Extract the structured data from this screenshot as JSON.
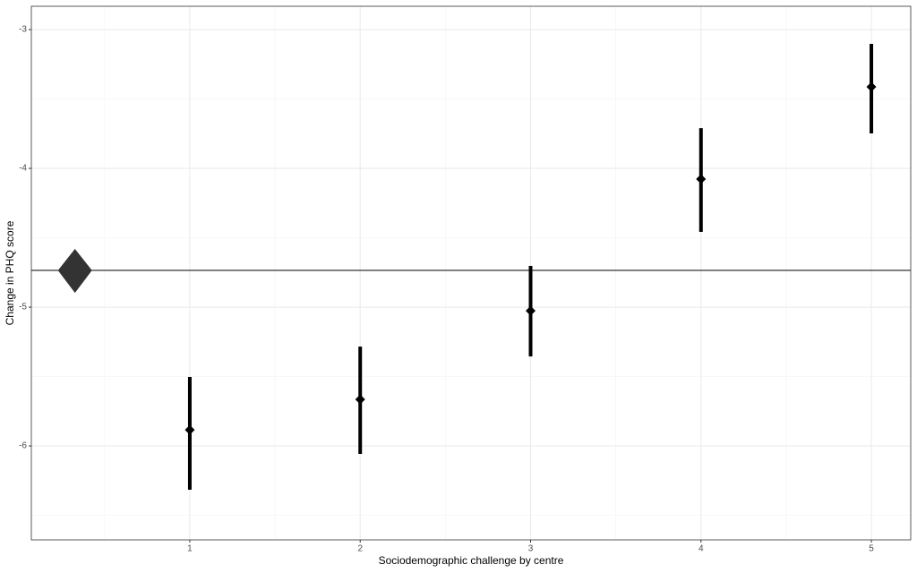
{
  "chart_data": {
    "type": "errorbar",
    "x_label": "Sociodemographic challenge by centre",
    "y_label": "Change in PHQ score",
    "series": [
      {
        "name": null,
        "color": "#000000",
        "x": [
          1,
          2,
          3,
          4,
          5
        ],
        "values": [
          -5.884,
          -5.665,
          -5.026,
          -4.077,
          -3.413
        ],
        "lower": [
          -6.316,
          -6.058,
          -5.355,
          -4.458,
          -3.748
        ],
        "upper": [
          -5.503,
          -5.284,
          -4.703,
          -3.71,
          -3.103
        ]
      }
    ],
    "overall": {
      "x": 0.326,
      "value": -4.735,
      "lower": -4.897,
      "upper": -4.58,
      "color": "#333333"
    },
    "xlim": [
      0.07,
      5.231
    ],
    "xticks": [
      1,
      2,
      3,
      4,
      5
    ],
    "x_minor_ticks": [
      0.5,
      1.5,
      2.5,
      3.5,
      4.5
    ],
    "ylim": [
      -6.677,
      -2.832
    ],
    "yticks": [
      -6,
      -5,
      -4,
      -3
    ],
    "y_minor_ticks": [
      -6.5,
      -5.5,
      -4.5,
      -3.5
    ],
    "grid": true
  }
}
